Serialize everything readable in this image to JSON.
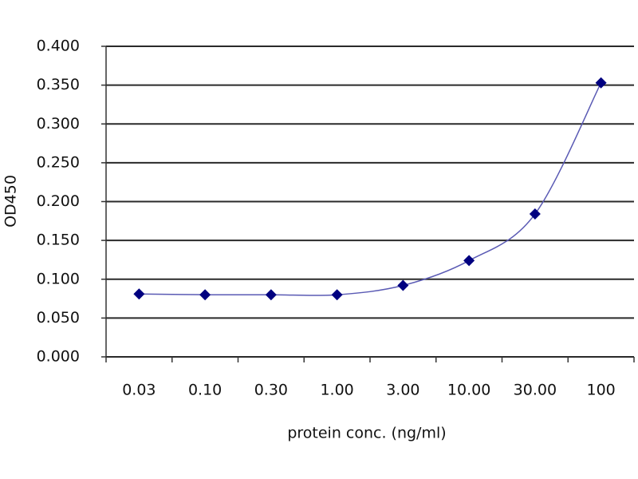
{
  "chart_data": {
    "type": "line",
    "x_label": "protein conc. (ng/ml)",
    "y_label": "OD450",
    "categories": [
      "0.03",
      "0.10",
      "0.30",
      "1.00",
      "3.00",
      "10.00",
      "30.00",
      "100"
    ],
    "series": [
      {
        "color": "#000080",
        "line_color": "#5a5ab4",
        "values": [
          0.081,
          0.08,
          0.08,
          0.08,
          0.092,
          0.124,
          0.184,
          0.353
        ]
      }
    ],
    "ylim": [
      0,
      0.4
    ],
    "yticks": [
      {
        "value": 0,
        "label": "0.000"
      },
      {
        "value": 0.05,
        "label": "0.050"
      },
      {
        "value": 0.1,
        "label": "0.100"
      },
      {
        "value": 0.15,
        "label": "0.150"
      },
      {
        "value": 0.2,
        "label": "0.200"
      },
      {
        "value": 0.25,
        "label": "0.250"
      },
      {
        "value": 0.3,
        "label": "0.300"
      },
      {
        "value": 0.35,
        "label": "0.350"
      },
      {
        "value": 0.4,
        "label": "0.400"
      }
    ],
    "grid": true
  }
}
